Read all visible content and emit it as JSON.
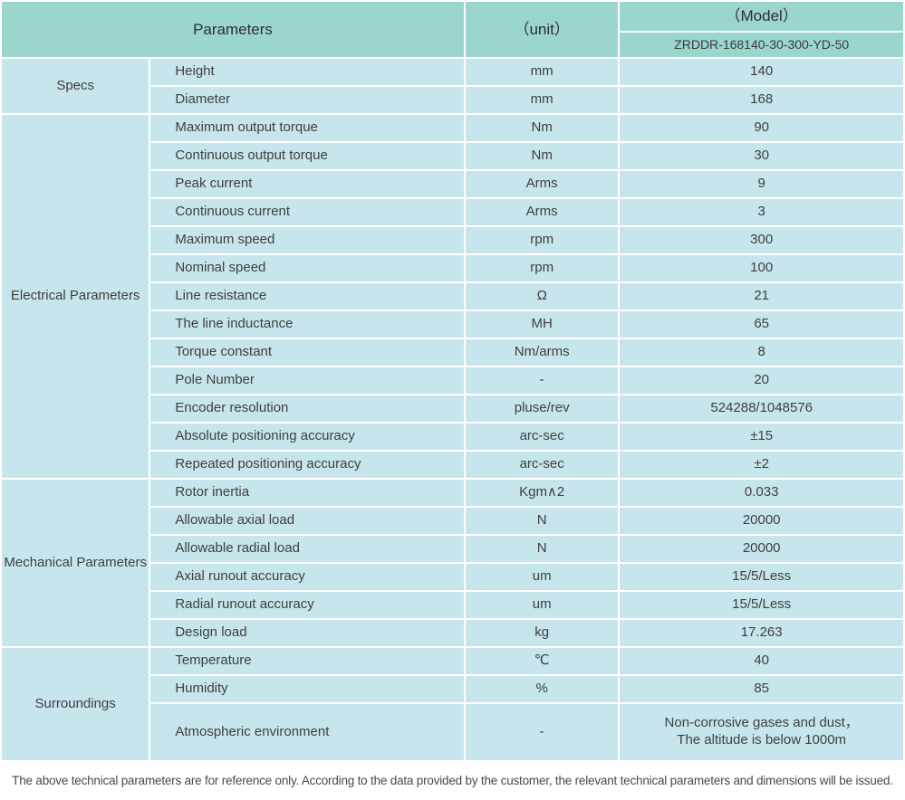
{
  "header": {
    "parameters_label": "Parameters",
    "unit_label": "（unit）",
    "model_label": "（Model）",
    "model_value": "ZRDDR-168140-30-300-YD-50"
  },
  "colors": {
    "header_bg": "#9ad6cb",
    "row_bg": "#c6e5ec",
    "border": "#ffffff"
  },
  "sections": [
    {
      "label": "Specs",
      "rows": [
        {
          "param": "Height",
          "unit": "mm",
          "value": "140"
        },
        {
          "param": "Diameter",
          "unit": "mm",
          "value": "168"
        }
      ]
    },
    {
      "label": "Electrical Parameters",
      "rows": [
        {
          "param": "Maximum output torque",
          "unit": "Nm",
          "value": "90"
        },
        {
          "param": "Continuous output torque",
          "unit": "Nm",
          "value": "30"
        },
        {
          "param": "Peak current",
          "unit": "Arms",
          "value": "9"
        },
        {
          "param": "Continuous current",
          "unit": "Arms",
          "value": "3"
        },
        {
          "param": "Maximum speed",
          "unit": "rpm",
          "value": "300"
        },
        {
          "param": "Nominal speed",
          "unit": "rpm",
          "value": "100"
        },
        {
          "param": "Line resistance",
          "unit": "Ω",
          "value": "21"
        },
        {
          "param": "The line inductance",
          "unit": "MH",
          "value": "65"
        },
        {
          "param": "Torque constant",
          "unit": "Nm/arms",
          "value": "8"
        },
        {
          "param": "Pole Number",
          "unit": "-",
          "value": "20"
        },
        {
          "param": "Encoder resolution",
          "unit": "pluse/rev",
          "value": "524288/1048576"
        },
        {
          "param": "Absolute positioning accuracy",
          "unit": "arc-sec",
          "value": "±15"
        },
        {
          "param": "Repeated positioning accuracy",
          "unit": "arc-sec",
          "value": "±2"
        }
      ]
    },
    {
      "label": "Mechanical Parameters",
      "rows": [
        {
          "param": "Rotor inertia",
          "unit": "Kgm∧2",
          "value": "0.033"
        },
        {
          "param": "Allowable axial load",
          "unit": "N",
          "value": "20000"
        },
        {
          "param": "Allowable radial load",
          "unit": "N",
          "value": "20000"
        },
        {
          "param": "Axial runout accuracy",
          "unit": "um",
          "value": "15/5/Less"
        },
        {
          "param": "Radial runout accuracy",
          "unit": "um",
          "value": "15/5/Less"
        },
        {
          "param": "Design load",
          "unit": "kg",
          "value": "17.263"
        }
      ]
    },
    {
      "label": "Surroundings",
      "rows": [
        {
          "param": "Temperature",
          "unit": "℃",
          "value": "40"
        },
        {
          "param": "Humidity",
          "unit": "%",
          "value": "85"
        },
        {
          "param": "Atmospheric environment",
          "unit": "-",
          "value": "Non-corrosive gases and dust，\nThe altitude is below 1000m"
        }
      ]
    }
  ],
  "footer_note": "The above technical parameters are for reference only. According to the data provided by the customer, the relevant technical parameters and dimensions will be issued."
}
